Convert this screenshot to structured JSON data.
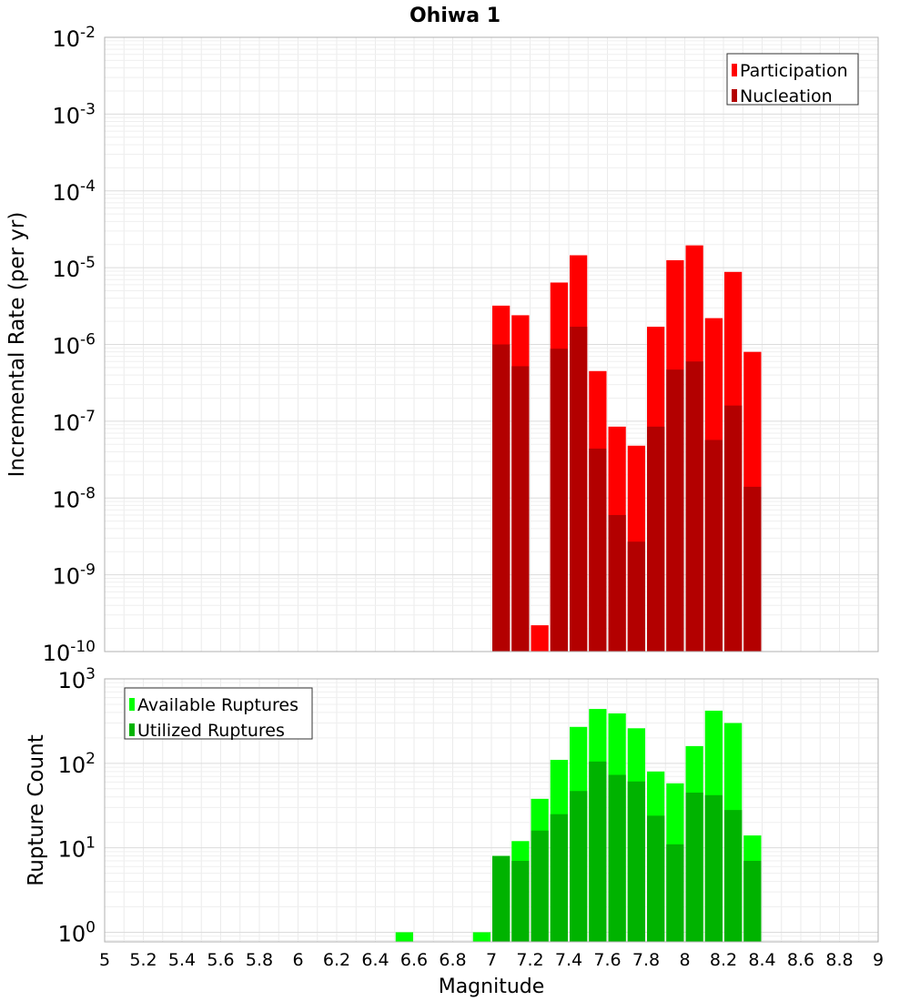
{
  "title": "Ohiwa 1",
  "xlabel": "Magnitude",
  "chart_data": [
    {
      "type": "bar",
      "panel": "top",
      "ylabel": "Incremental Rate (per yr)",
      "yscale": "log",
      "ylim": [
        1e-10,
        0.01
      ],
      "xlim": [
        5,
        9
      ],
      "y_tick_exponents": [
        -10,
        -9,
        -8,
        -7,
        -6,
        -5,
        -4,
        -3,
        -2
      ],
      "grid": true,
      "legend_position": "top-right",
      "bin_width": 0.1,
      "x": [
        7.05,
        7.15,
        7.25,
        7.35,
        7.45,
        7.55,
        7.65,
        7.75,
        7.85,
        7.95,
        8.05,
        8.15,
        8.25,
        8.35
      ],
      "series": [
        {
          "name": "Participation",
          "color": "#ff0000",
          "values": [
            3.2e-06,
            2.4e-06,
            2.2e-10,
            6.4e-06,
            1.45e-05,
            4.5e-07,
            8.5e-08,
            4.8e-08,
            1.7e-06,
            1.25e-05,
            1.95e-05,
            2.2e-06,
            8.8e-06,
            8e-07
          ]
        },
        {
          "name": "Nucleation",
          "color": "#b30000",
          "values": [
            1e-06,
            5.2e-07,
            0,
            8.8e-07,
            1.7e-06,
            4.4e-08,
            6e-09,
            2.7e-09,
            8.5e-08,
            4.7e-07,
            6e-07,
            5.7e-08,
            1.6e-07,
            1.4e-08
          ]
        }
      ]
    },
    {
      "type": "bar",
      "panel": "bottom",
      "ylabel": "Rupture Count",
      "yscale": "log",
      "ylim": [
        0.77,
        1000
      ],
      "xlim": [
        5,
        9
      ],
      "y_tick_exponents": [
        0,
        1,
        2,
        3
      ],
      "grid": true,
      "legend_position": "top-left",
      "bin_width": 0.1,
      "x": [
        6.55,
        6.95,
        7.05,
        7.15,
        7.25,
        7.35,
        7.45,
        7.55,
        7.65,
        7.75,
        7.85,
        7.95,
        8.05,
        8.15,
        8.25,
        8.35
      ],
      "series": [
        {
          "name": "Available Ruptures",
          "color": "#00ff00",
          "values": [
            1,
            1,
            8,
            12,
            38,
            110,
            270,
            440,
            390,
            260,
            80,
            58,
            160,
            420,
            300,
            14
          ]
        },
        {
          "name": "Utilized Ruptures",
          "color": "#00b300",
          "values": [
            0,
            0,
            8,
            7,
            16,
            25,
            47,
            105,
            73,
            61,
            24,
            11,
            45,
            42,
            28,
            7
          ]
        }
      ]
    }
  ],
  "x_ticks": [
    "5",
    "5.2",
    "5.4",
    "5.6",
    "5.8",
    "6",
    "6.2",
    "6.4",
    "6.6",
    "6.8",
    "7",
    "7.2",
    "7.4",
    "7.6",
    "7.8",
    "8",
    "8.2",
    "8.4",
    "8.6",
    "8.8",
    "9"
  ]
}
